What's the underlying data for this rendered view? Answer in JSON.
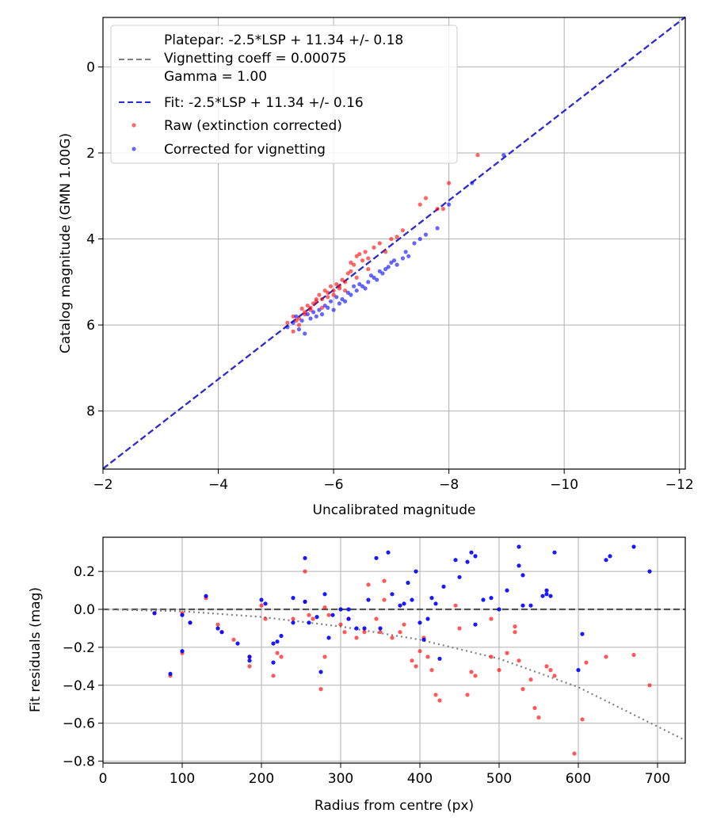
{
  "chart_data": [
    {
      "type": "scatter",
      "xlabel": "Uncalibrated magnitude",
      "ylabel": "Catalog magnitude (GMN 1.00G)",
      "xlim": [
        -2,
        -12.1
      ],
      "ylim": [
        9.35,
        -1.15
      ],
      "x_ticks": [
        -2,
        -4,
        -6,
        -8,
        -10,
        -12
      ],
      "x_tick_labels": [
        "−2",
        "−4",
        "−6",
        "−8",
        "−10",
        "−12"
      ],
      "y_ticks": [
        0,
        2,
        4,
        6,
        8
      ],
      "y_tick_labels": [
        "0",
        "2",
        "4",
        "6",
        "8"
      ],
      "grid": true,
      "legend": {
        "placement": "top-left",
        "platepar_lines": [
          "Platepar: -2.5*LSP + 11.34 +/- 0.18",
          "Vignetting coeff = 0.00075",
          "Gamma = 1.00"
        ],
        "fit": "Fit: -2.5*LSP + 11.34 +/- 0.16",
        "raw": "Raw (extinction corrected)",
        "corrected": "Corrected for vignetting"
      },
      "lines": [
        {
          "name": "platepar",
          "x": [
            -2,
            -12.1
          ],
          "y": [
            9.34,
            -1.16
          ],
          "color": "#808080",
          "style": "dashed"
        },
        {
          "name": "fit",
          "x": [
            -2,
            -12.1
          ],
          "y": [
            9.34,
            -1.16
          ],
          "color": "#2a2ad6",
          "style": "dashed"
        }
      ],
      "series": [
        {
          "name": "Raw (extinction corrected)",
          "color": "#ff0000",
          "x": [
            -5.2,
            -5.3,
            -5.35,
            -5.4,
            -5.45,
            -5.5,
            -5.55,
            -5.6,
            -5.65,
            -5.7,
            -5.75,
            -5.8,
            -5.85,
            -5.9,
            -5.95,
            -6.0,
            -6.05,
            -6.1,
            -6.15,
            -6.2,
            -6.25,
            -6.3,
            -6.35,
            -6.4,
            -6.45,
            -6.5,
            -6.55,
            -6.6,
            -6.7,
            -6.8,
            -6.9,
            -7.0,
            -7.1,
            -7.2,
            -7.5,
            -7.6,
            -7.8,
            -7.9,
            -8.0,
            -8.5,
            -5.3,
            -5.5,
            -5.8,
            -6.0,
            -6.2,
            -6.4,
            -6.6,
            -5.6,
            -5.9,
            -6.3,
            -5.4,
            -5.7,
            -6.1
          ],
          "y": [
            5.95,
            5.8,
            5.9,
            5.85,
            5.62,
            5.7,
            5.55,
            5.6,
            5.5,
            5.45,
            5.3,
            5.4,
            5.2,
            5.35,
            5.1,
            5.2,
            5.05,
            5.1,
            4.95,
            5.0,
            4.8,
            4.75,
            4.6,
            4.4,
            4.35,
            4.5,
            4.3,
            4.45,
            4.2,
            4.1,
            4.3,
            4.0,
            3.95,
            3.8,
            3.2,
            3.05,
            3.3,
            3.3,
            2.7,
            2.05,
            6.15,
            5.75,
            5.6,
            5.3,
            5.2,
            4.9,
            4.7,
            5.65,
            5.25,
            4.55,
            6.0,
            5.4,
            5.15
          ]
        },
        {
          "name": "Corrected for vignetting",
          "color": "#0000ff",
          "x": [
            -5.2,
            -5.3,
            -5.4,
            -5.5,
            -5.6,
            -5.7,
            -5.8,
            -5.9,
            -6.0,
            -6.1,
            -6.2,
            -6.3,
            -6.4,
            -6.5,
            -6.6,
            -6.7,
            -6.8,
            -6.9,
            -7.0,
            -7.1,
            -7.2,
            -7.3,
            -7.4,
            -7.5,
            -7.6,
            -7.8,
            -8.0,
            -8.4,
            -8.95,
            -5.45,
            -5.65,
            -5.85,
            -6.05,
            -6.25,
            -6.45,
            -6.65,
            -6.85,
            -7.05,
            -5.35,
            -5.75,
            -6.15,
            -6.55,
            -6.95,
            -7.25,
            -5.55,
            -5.95,
            -6.35,
            -6.75
          ],
          "y": [
            6.05,
            5.95,
            6.1,
            6.2,
            5.85,
            5.8,
            5.75,
            5.6,
            5.65,
            5.5,
            5.45,
            5.3,
            5.2,
            5.1,
            5.0,
            4.9,
            4.75,
            4.7,
            4.55,
            4.6,
            4.45,
            4.4,
            4.1,
            4.0,
            3.9,
            3.75,
            3.2,
            2.7,
            2.05,
            5.9,
            5.7,
            5.55,
            5.35,
            5.25,
            5.05,
            4.85,
            4.8,
            4.5,
            5.8,
            5.65,
            5.4,
            5.15,
            4.65,
            4.3,
            5.75,
            5.45,
            5.1,
            4.95
          ]
        }
      ]
    },
    {
      "type": "scatter",
      "xlabel": "Radius from centre (px)",
      "ylabel": "Fit residuals (mag)",
      "xlim": [
        0,
        735
      ],
      "ylim": [
        -0.81,
        0.38
      ],
      "x_ticks": [
        0,
        100,
        200,
        300,
        400,
        500,
        600,
        700
      ],
      "x_tick_labels": [
        "0",
        "100",
        "200",
        "300",
        "400",
        "500",
        "600",
        "700"
      ],
      "y_ticks": [
        0.2,
        0.0,
        -0.2,
        -0.4,
        -0.6,
        -0.8
      ],
      "y_tick_labels": [
        "0.2",
        "0.0",
        "−0.2",
        "−0.4",
        "−0.6",
        "−0.8"
      ],
      "grid": true,
      "lines": [
        {
          "name": "zero",
          "x": [
            0,
            735
          ],
          "y": [
            0,
            0
          ],
          "color": "#555555",
          "style": "dashed"
        },
        {
          "name": "vignetting-model",
          "x": [
            0,
            100,
            200,
            300,
            400,
            500,
            600,
            735
          ],
          "y": [
            0,
            -0.01,
            -0.04,
            -0.09,
            -0.16,
            -0.26,
            -0.41,
            -0.69
          ],
          "color": "#808080",
          "style": "dotted"
        }
      ],
      "series": [
        {
          "name": "Raw (extinction corrected)",
          "color": "#ff0000",
          "x": [
            65,
            85,
            100,
            100,
            110,
            130,
            145,
            150,
            165,
            185,
            185,
            200,
            205,
            215,
            220,
            225,
            240,
            255,
            260,
            265,
            275,
            280,
            285,
            300,
            305,
            320,
            330,
            345,
            350,
            355,
            365,
            375,
            390,
            395,
            400,
            410,
            415,
            420,
            425,
            445,
            460,
            465,
            470,
            490,
            500,
            510,
            520,
            525,
            530,
            540,
            545,
            550,
            560,
            565,
            570,
            595,
            605,
            610,
            635,
            670,
            690,
            255,
            280,
            310,
            335,
            355,
            380,
            405,
            450,
            490,
            520
          ],
          "y": [
            -0.02,
            -0.35,
            -0.02,
            -0.23,
            -0.07,
            0.06,
            -0.08,
            -0.12,
            -0.16,
            -0.25,
            -0.3,
            0.02,
            -0.05,
            -0.35,
            -0.23,
            -0.25,
            -0.05,
            0.2,
            -0.03,
            -0.05,
            -0.42,
            -0.25,
            -0.03,
            -0.08,
            -0.12,
            -0.15,
            -0.12,
            -0.05,
            -0.12,
            0.15,
            -0.15,
            -0.12,
            -0.27,
            -0.3,
            -0.22,
            -0.25,
            -0.32,
            -0.45,
            -0.48,
            0.02,
            -0.45,
            -0.33,
            -0.35,
            -0.25,
            -0.32,
            -0.23,
            -0.12,
            -0.27,
            -0.42,
            -0.37,
            -0.52,
            -0.57,
            -0.3,
            -0.32,
            -0.35,
            -0.76,
            -0.58,
            -0.28,
            -0.25,
            -0.24,
            -0.4,
            0.04,
            0.01,
            -0.05,
            0.13,
            0.05,
            -0.08,
            -0.15,
            -0.1,
            -0.05,
            -0.09
          ]
        },
        {
          "name": "Corrected for vignetting",
          "color": "#0000ff",
          "x": [
            65,
            85,
            100,
            100,
            110,
            130,
            145,
            150,
            170,
            185,
            185,
            200,
            205,
            215,
            220,
            225,
            240,
            255,
            260,
            270,
            275,
            285,
            290,
            300,
            310,
            320,
            330,
            345,
            350,
            360,
            365,
            380,
            390,
            395,
            400,
            410,
            415,
            420,
            425,
            445,
            460,
            465,
            470,
            490,
            500,
            510,
            525,
            525,
            530,
            540,
            555,
            560,
            565,
            570,
            600,
            605,
            635,
            640,
            670,
            690,
            255,
            280,
            335,
            375,
            405,
            450,
            480,
            530,
            560,
            215,
            240,
            310,
            385,
            430,
            470
          ],
          "y": [
            -0.02,
            -0.34,
            -0.03,
            -0.22,
            -0.07,
            0.07,
            -0.1,
            -0.12,
            -0.18,
            -0.25,
            -0.27,
            0.05,
            0.03,
            -0.28,
            -0.17,
            -0.14,
            -0.07,
            0.27,
            -0.07,
            -0.04,
            -0.33,
            -0.15,
            -0.03,
            0.0,
            -0.05,
            -0.1,
            -0.1,
            0.27,
            -0.1,
            0.3,
            0.08,
            0.03,
            0.05,
            0.2,
            -0.07,
            -0.05,
            0.06,
            0.03,
            -0.26,
            0.26,
            0.25,
            0.3,
            0.28,
            0.06,
            0.0,
            0.1,
            0.33,
            0.23,
            0.18,
            0.02,
            0.07,
            0.1,
            0.07,
            0.3,
            -0.32,
            -0.13,
            0.26,
            0.28,
            0.33,
            0.2,
            0.04,
            0.08,
            0.05,
            0.02,
            -0.16,
            0.17,
            0.05,
            0.02,
            0.08,
            -0.18,
            0.06,
            0.0,
            0.14,
            0.12,
            -0.08
          ]
        }
      ]
    }
  ]
}
